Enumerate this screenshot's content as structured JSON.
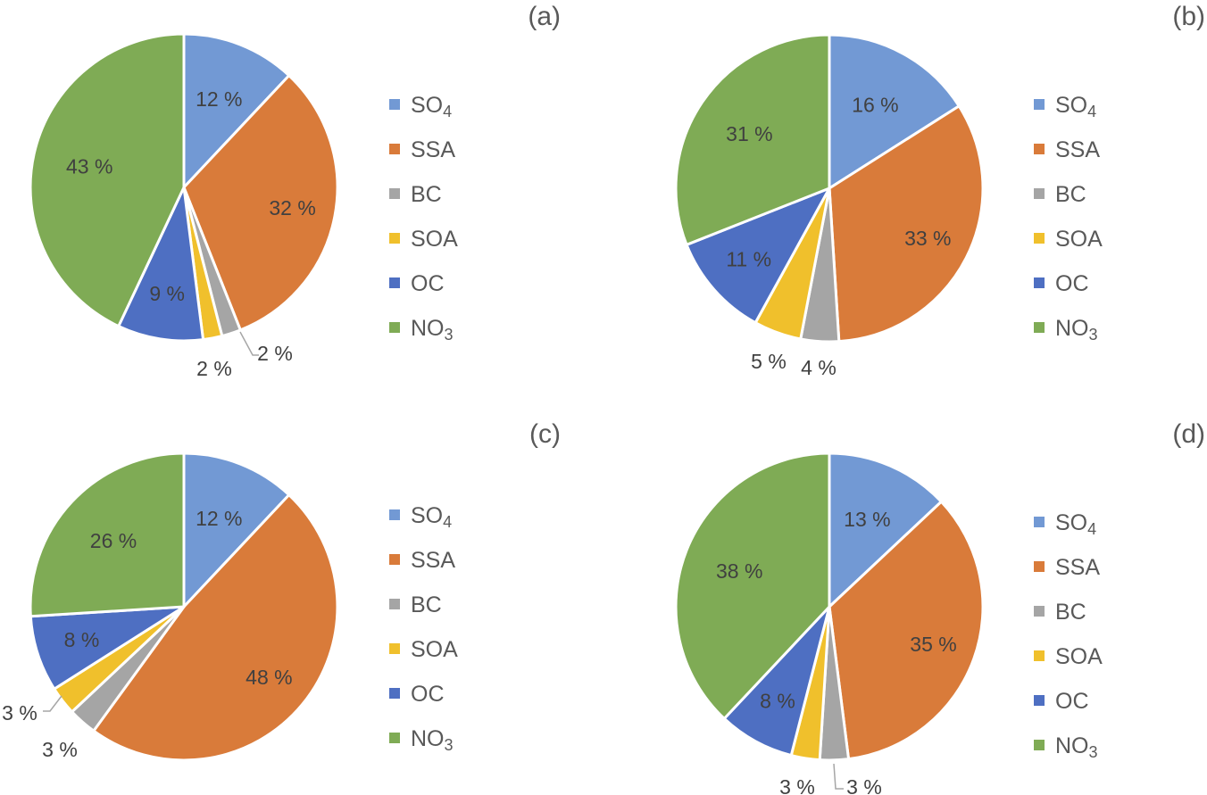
{
  "colors": {
    "SO4": "#7299d4",
    "SSA": "#d97b3a",
    "BC": "#a5a5a5",
    "SOA": "#f0c02c",
    "OC": "#4e6fc2",
    "NO3": "#7fab55"
  },
  "legend": [
    {
      "key": "SO4",
      "base": "SO",
      "sub": "4"
    },
    {
      "key": "SSA",
      "base": "SSA",
      "sub": ""
    },
    {
      "key": "BC",
      "base": "BC",
      "sub": ""
    },
    {
      "key": "SOA",
      "base": "SOA",
      "sub": ""
    },
    {
      "key": "OC",
      "base": "OC",
      "sub": ""
    },
    {
      "key": "NO3",
      "base": "NO",
      "sub": "3"
    }
  ],
  "chart_data": [
    {
      "type": "pie",
      "panel": "(a)",
      "categories": [
        "SO4",
        "SSA",
        "BC",
        "SOA",
        "OC",
        "NO3"
      ],
      "values": [
        12,
        32,
        2,
        2,
        9,
        43
      ],
      "labels": [
        "12 %",
        "32 %",
        "2 %",
        "2 %",
        "9 %",
        "43 %"
      ],
      "legend_position": "right"
    },
    {
      "type": "pie",
      "panel": "(b)",
      "categories": [
        "SO4",
        "SSA",
        "BC",
        "SOA",
        "OC",
        "NO3"
      ],
      "values": [
        16,
        33,
        4,
        5,
        11,
        31
      ],
      "labels": [
        "16 %",
        "33 %",
        "4 %",
        "5 %",
        "11 %",
        "31 %"
      ],
      "legend_position": "right"
    },
    {
      "type": "pie",
      "panel": "(c)",
      "categories": [
        "SO4",
        "SSA",
        "BC",
        "SOA",
        "OC",
        "NO3"
      ],
      "values": [
        12,
        48,
        3,
        3,
        8,
        26
      ],
      "labels": [
        "12 %",
        "48 %",
        "3 %",
        "3 %",
        "8 %",
        "26 %"
      ],
      "legend_position": "right"
    },
    {
      "type": "pie",
      "panel": "(d)",
      "categories": [
        "SO4",
        "SSA",
        "BC",
        "SOA",
        "OC",
        "NO3"
      ],
      "values": [
        13,
        35,
        3,
        3,
        8,
        38
      ],
      "labels": [
        "13 %",
        "35 %",
        "3 %",
        "3 %",
        "8 %",
        "38 %"
      ],
      "legend_position": "right"
    }
  ]
}
